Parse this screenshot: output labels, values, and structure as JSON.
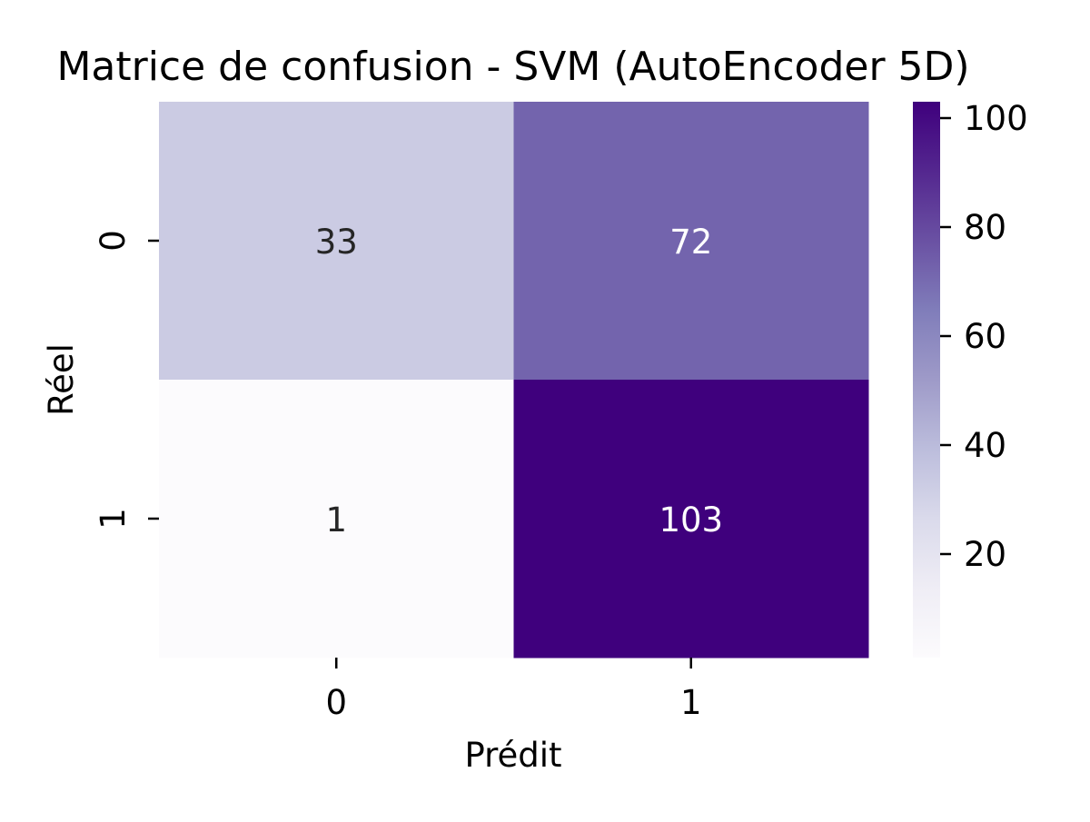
{
  "chart_data": {
    "type": "heatmap",
    "title": "Matrice de confusion - SVM (AutoEncoder 5D)",
    "xlabel": "Prédit",
    "ylabel": "Réel",
    "x_categories": [
      "0",
      "1"
    ],
    "y_categories": [
      "0",
      "1"
    ],
    "values": [
      [
        33,
        72
      ],
      [
        1,
        103
      ]
    ],
    "colormap": "Purples",
    "colorbar": {
      "range": [
        1,
        103
      ],
      "ticks": [
        20,
        40,
        60,
        80,
        100
      ]
    },
    "annotation_colors": {
      "dark_text": "#262626",
      "light_text": "#ffffff"
    }
  }
}
